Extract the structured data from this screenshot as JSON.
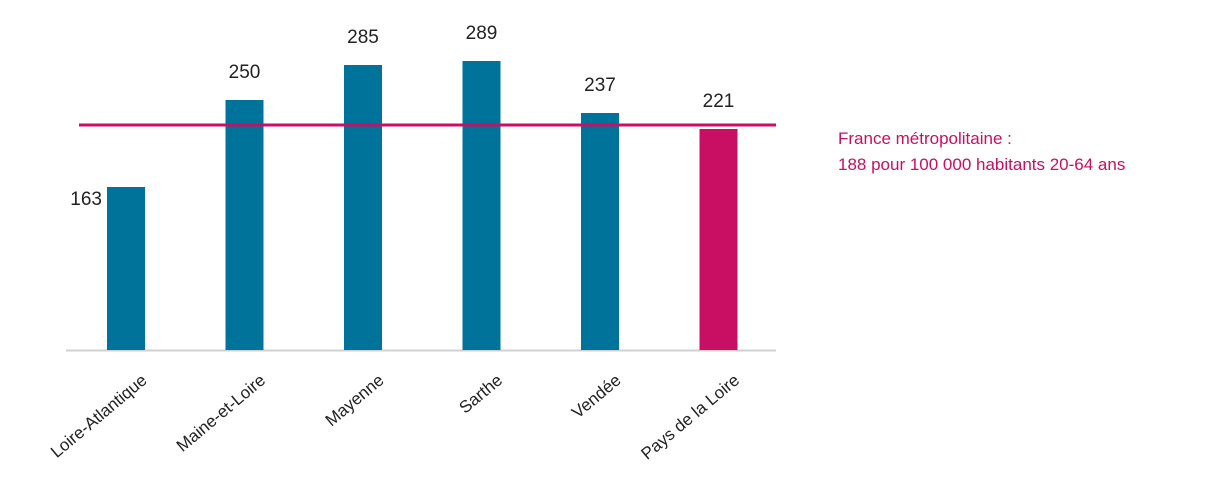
{
  "chart_data": {
    "type": "bar",
    "title": "",
    "xlabel": "",
    "ylabel": "",
    "categories": [
      "Loire-Atlantique",
      "Maine-et-Loire",
      "Mayenne",
      "Sarthe",
      "Vendée",
      "Pays de la Loire"
    ],
    "values": [
      163,
      250,
      285,
      289,
      237,
      221
    ],
    "ylim": [
      0,
      310
    ],
    "grid": false,
    "legend": "none",
    "bar_colors": [
      "#00739a",
      "#00739a",
      "#00739a",
      "#00739a",
      "#00739a",
      "#c80f64"
    ],
    "reference_line": {
      "value": 188,
      "color": "#c80f64",
      "label_line1": "France métropolitaine :",
      "label_line2": "188 pour 100 000 habitants 20-64 ans"
    },
    "axis_color": "#d0d0d0"
  }
}
